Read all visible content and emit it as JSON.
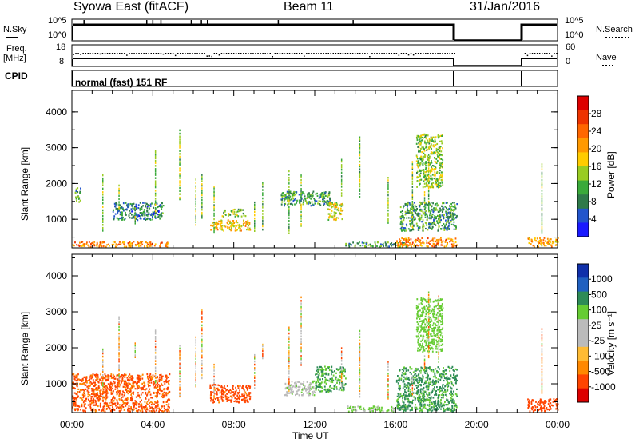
{
  "header": {
    "station": "Syowa East (fitACF)",
    "beam": "Beam 11",
    "date": "31/Jan/2016"
  },
  "top_panels": {
    "nsky_label": "N.Sky",
    "nsky_ticks": [
      "10^5",
      "10^0"
    ],
    "nsearch_label": "N.Search",
    "nsearch_ticks": [
      "10^5",
      "10^0"
    ],
    "freq_label": "Freq.",
    "freq_unit": "[MHz]",
    "freq_ticks": [
      "18",
      "8"
    ],
    "nave_label": "Nave",
    "nave_ticks": [
      "60",
      "0"
    ],
    "cpid_label": "CPID",
    "cpid_text": "normal (fast) 151 RF"
  },
  "colors": {
    "power_scale": [
      "#1a1aff",
      "#2255cc",
      "#2f7a4a",
      "#3aaa3a",
      "#99cc22",
      "#ffcc00",
      "#ff9900",
      "#ff6600",
      "#ee3300",
      "#dd0000"
    ],
    "velocity_scale": [
      "#dd0000",
      "#ff4400",
      "#ff8800",
      "#ffbb33",
      "#bbbbbb",
      "#bbbbbb",
      "#66cc33",
      "#2e8b57",
      "#2060c0",
      "#1030aa"
    ]
  },
  "chart_data": [
    {
      "type": "heatmap",
      "name": "power",
      "ylabel": "Slant Range [km]",
      "y_ticks": [
        "1000",
        "2000",
        "3000",
        "4000"
      ],
      "ylim": [
        200,
        4600
      ],
      "xlim": [
        0,
        24
      ],
      "colorbar_label": "Power [dB]",
      "colorbar_ticks": [
        "4",
        "8",
        "12",
        "16",
        "20",
        "24",
        "28"
      ],
      "patches": [
        {
          "t0": 0.0,
          "t1": 4.8,
          "r0": 250,
          "r1": 400,
          "value": 22
        },
        {
          "t0": 0.1,
          "t1": 0.4,
          "r0": 1500,
          "r1": 1900,
          "value": 10
        },
        {
          "t0": 2.0,
          "t1": 4.5,
          "r0": 1000,
          "r1": 1500,
          "value": 8
        },
        {
          "t0": 6.8,
          "t1": 8.8,
          "r0": 700,
          "r1": 1000,
          "value": 18
        },
        {
          "t0": 7.4,
          "t1": 8.6,
          "r0": 1100,
          "r1": 1300,
          "value": 12
        },
        {
          "t0": 10.3,
          "t1": 12.8,
          "r0": 1400,
          "r1": 1800,
          "value": 10
        },
        {
          "t0": 12.6,
          "t1": 13.4,
          "r0": 1000,
          "r1": 1500,
          "value": 16
        },
        {
          "t0": 13.5,
          "t1": 16.5,
          "r0": 250,
          "r1": 380,
          "value": 10
        },
        {
          "t0": 16.0,
          "t1": 19.0,
          "r0": 250,
          "r1": 500,
          "value": 22
        },
        {
          "t0": 16.2,
          "t1": 19.0,
          "r0": 700,
          "r1": 1500,
          "value": 10
        },
        {
          "t0": 17.0,
          "t1": 18.3,
          "r0": 1900,
          "r1": 3400,
          "value": 14
        },
        {
          "t0": 22.5,
          "t1": 24.0,
          "r0": 250,
          "r1": 500,
          "value": 20
        }
      ]
    },
    {
      "type": "heatmap",
      "name": "velocity",
      "ylabel": "Slant Range [km]",
      "y_ticks": [
        "1000",
        "2000",
        "3000",
        "4000"
      ],
      "ylim": [
        200,
        4600
      ],
      "xlim": [
        0,
        24
      ],
      "xlabel": "Time UT",
      "x_ticks": [
        "00:00",
        "04:00",
        "08:00",
        "12:00",
        "16:00",
        "20:00",
        "00:00"
      ],
      "colorbar_label": "Velocity [m s⁻¹]",
      "colorbar_ticks": [
        "1000",
        "500",
        "100",
        "25",
        "-25",
        "-100",
        "-500",
        "-1000"
      ],
      "patches": [
        {
          "t0": 0.0,
          "t1": 4.8,
          "r0": 250,
          "r1": 1300,
          "value": -120
        },
        {
          "t0": 6.8,
          "t1": 8.8,
          "r0": 500,
          "r1": 1000,
          "value": -150
        },
        {
          "t0": 10.5,
          "t1": 12.0,
          "r0": 700,
          "r1": 1100,
          "value": 80
        },
        {
          "t0": 12.0,
          "t1": 13.5,
          "r0": 800,
          "r1": 1500,
          "value": 500
        },
        {
          "t0": 13.5,
          "t1": 16.5,
          "r0": 250,
          "r1": 400,
          "value": 120
        },
        {
          "t0": 16.0,
          "t1": 19.0,
          "r0": 250,
          "r1": 1500,
          "value": 600
        },
        {
          "t0": 17.0,
          "t1": 18.3,
          "r0": 1900,
          "r1": 3400,
          "value": 200
        },
        {
          "t0": 22.5,
          "t1": 24.0,
          "r0": 250,
          "r1": 600,
          "value": -200
        }
      ]
    }
  ]
}
